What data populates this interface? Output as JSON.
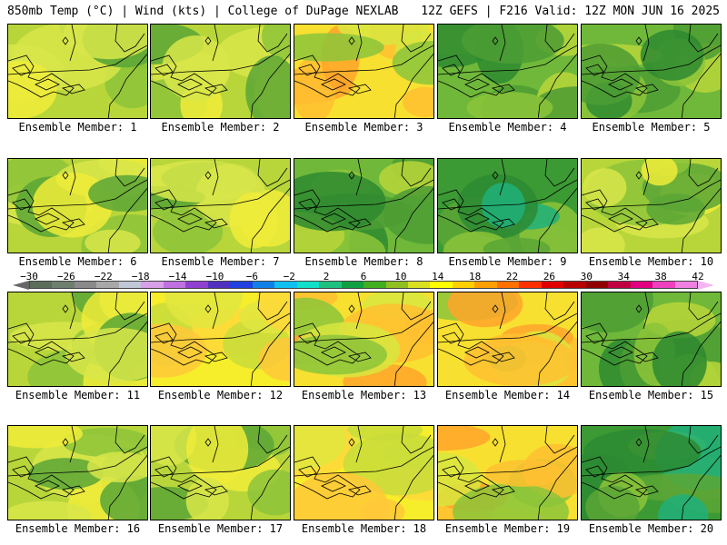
{
  "header": {
    "left": "850mb Temp (°C) | Wind (kts) | College of DuPage NEXLAB",
    "right": "12Z GEFS | F216 Valid: 12Z MON JUN 16 2025"
  },
  "colorbar": {
    "labels": [
      "−30",
      "−26",
      "−22",
      "−18",
      "−14",
      "−10",
      "−6",
      "−2",
      "2",
      "6",
      "10",
      "14",
      "18",
      "22",
      "26",
      "30",
      "34",
      "38",
      "42"
    ],
    "colors": [
      "#5a6e5a",
      "#6f7f6f",
      "#8a8a8a",
      "#a8a8a8",
      "#c0c8d8",
      "#d8a0e8",
      "#c070e0",
      "#9040d0",
      "#5030c0",
      "#2040e0",
      "#1080e8",
      "#10c0f0",
      "#10e0c8",
      "#20c080",
      "#10a040",
      "#40b020",
      "#90c020",
      "#d8e020",
      "#ffff00",
      "#ffd000",
      "#ffa000",
      "#ff7000",
      "#ff3000",
      "#e00000",
      "#b80000",
      "#900000",
      "#c00040",
      "#e00080",
      "#f040c0",
      "#f080e0"
    ]
  },
  "panels": [
    {
      "label": "Ensemble Member: 1",
      "style": "yellowgreen"
    },
    {
      "label": "Ensemble Member: 2",
      "style": "yellowgreen"
    },
    {
      "label": "Ensemble Member: 3",
      "style": "warm"
    },
    {
      "label": "Ensemble Member: 4",
      "style": "green"
    },
    {
      "label": "Ensemble Member: 5",
      "style": "green"
    },
    {
      "label": "Ensemble Member: 6",
      "style": "yellowgreen"
    },
    {
      "label": "Ensemble Member: 7",
      "style": "yellowgreen"
    },
    {
      "label": "Ensemble Member: 8",
      "style": "green"
    },
    {
      "label": "Ensemble Member: 9",
      "style": "cool"
    },
    {
      "label": "Ensemble Member: 10",
      "style": "yellowgreen"
    },
    {
      "label": "Ensemble Member: 11",
      "style": "yellowgreen"
    },
    {
      "label": "Ensemble Member: 12",
      "style": "yellow"
    },
    {
      "label": "Ensemble Member: 13",
      "style": "warm"
    },
    {
      "label": "Ensemble Member: 14",
      "style": "warm"
    },
    {
      "label": "Ensemble Member: 15",
      "style": "green"
    },
    {
      "label": "Ensemble Member: 16",
      "style": "yellowgreen"
    },
    {
      "label": "Ensemble Member: 17",
      "style": "yellowgreen"
    },
    {
      "label": "Ensemble Member: 18",
      "style": "yellow"
    },
    {
      "label": "Ensemble Member: 19",
      "style": "warm"
    },
    {
      "label": "Ensemble Member: 20",
      "style": "cool"
    }
  ]
}
